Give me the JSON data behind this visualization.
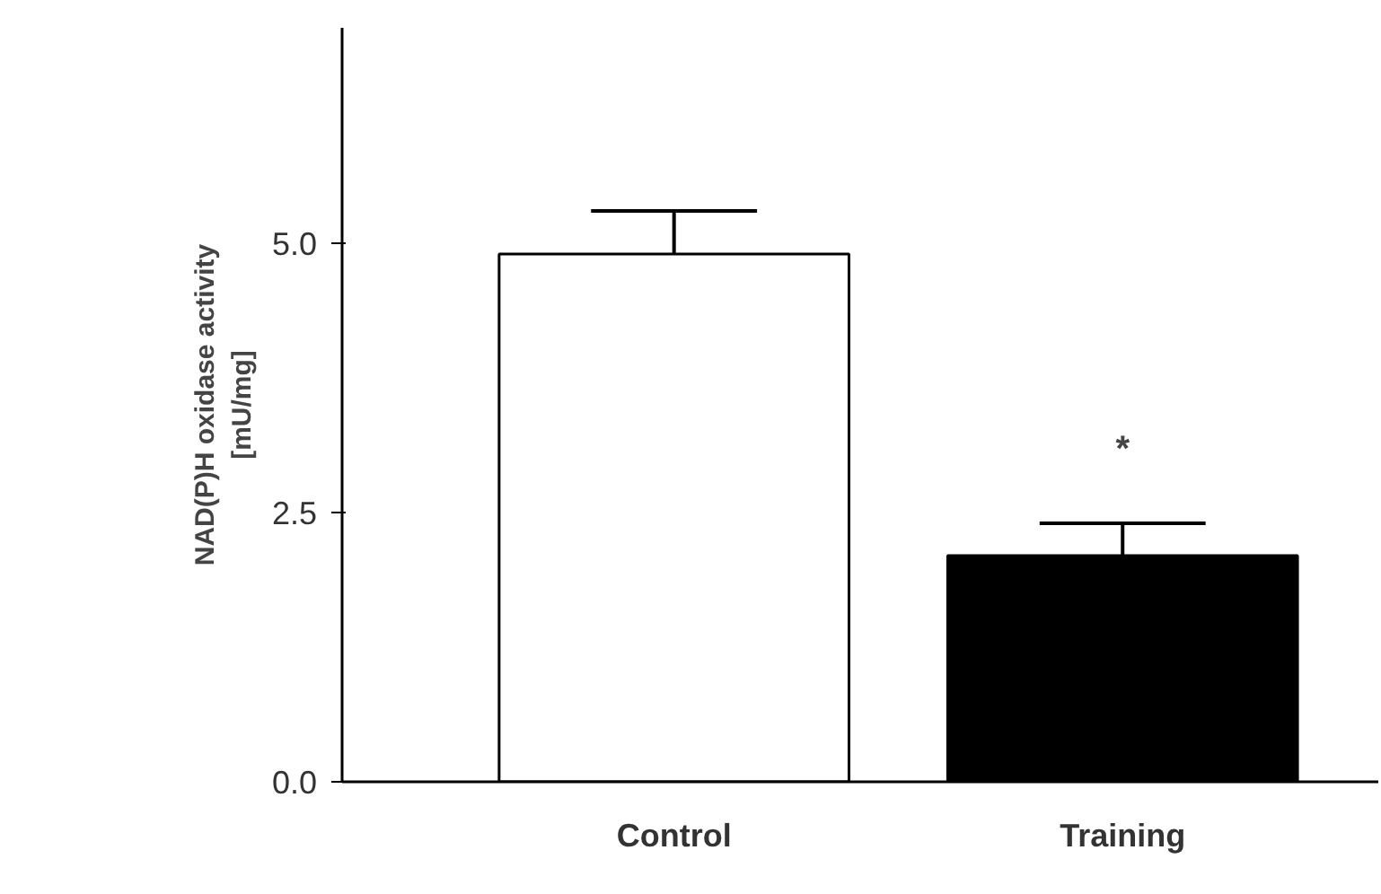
{
  "chart_data": {
    "type": "bar",
    "ylabel": "NAD(P)H oxidase activity\n[mU/mg]",
    "categories": [
      "Control",
      "Training"
    ],
    "values": [
      4.9,
      2.1
    ],
    "colors": [
      "#ffffff",
      "#000000"
    ],
    "errors": [
      [
        4.9,
        5.3
      ],
      [
        2.1,
        2.4
      ]
    ],
    "ylim": [
      0,
      7
    ],
    "yticks": [
      {
        "value": 0,
        "label": "0.0"
      },
      {
        "value": 2.5,
        "label": "2.5"
      },
      {
        "value": 5,
        "label": "5.0"
      }
    ],
    "annotations": [
      "*"
    ],
    "grid": false
  }
}
